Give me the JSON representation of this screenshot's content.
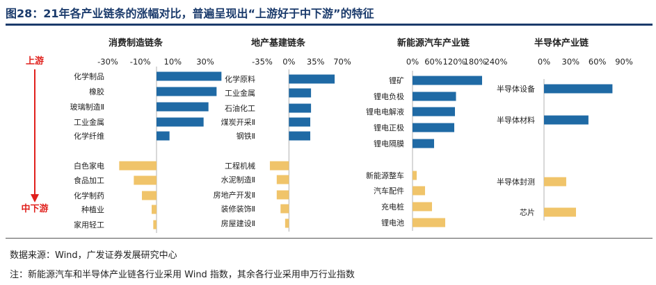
{
  "figure": {
    "title": "图28：21年各产业链条的涨幅对比，普遍呈现出“上游好于中下游”的特征",
    "upstream_label": "上游",
    "downstream_label": "中下游",
    "source": "数据来源：Wind，广发证券发展研究中心",
    "note": "注：新能源汽车和半导体产业链各行业采用 Wind 指数，其余各行业采用申万行业指数"
  },
  "colors": {
    "up": "#1f6aa5",
    "down": "#f0c46a",
    "title": "#1a3a6b",
    "arrow": "#e0201c"
  },
  "chart_data": [
    {
      "type": "bar",
      "title": "消费制造链条",
      "orientation": "horizontal",
      "xlim": [
        -30,
        30
      ],
      "xticks": [
        -30,
        -10,
        10,
        30
      ],
      "xtick_labels": [
        "-30%",
        "-10%",
        "10%",
        "30%"
      ],
      "categories": [
        "化学制品",
        "橡胶",
        "玻璃制造Ⅱ",
        "工业金属",
        "化学纤维",
        "白色家电",
        "食品加工",
        "化学制药",
        "种植业",
        "家用轻工"
      ],
      "values": [
        40,
        37,
        32,
        29,
        8,
        -23,
        -14,
        -9,
        -3,
        -2
      ],
      "group_size": [
        5,
        5
      ]
    },
    {
      "type": "bar",
      "title": "地产基建链条",
      "orientation": "horizontal",
      "xlim": [
        -35,
        70
      ],
      "xticks": [
        -35,
        0,
        35,
        70
      ],
      "xtick_labels": [
        "-35%",
        "0%",
        "35%",
        "70%"
      ],
      "categories": [
        "化学原料",
        "工业金属",
        "石油化工",
        "煤炭开采Ⅱ",
        "钢铁Ⅱ",
        "工程机械",
        "水泥制造Ⅱ",
        "房地产开发Ⅱ",
        "装修装饰Ⅱ",
        "房屋建设Ⅱ"
      ],
      "values": [
        60,
        29,
        29,
        28,
        28,
        -25,
        -16,
        -16,
        -11,
        -5
      ],
      "group_size": [
        5,
        5
      ]
    },
    {
      "type": "bar",
      "title": "新能源汽车产业链",
      "orientation": "horizontal",
      "xlim": [
        0,
        240
      ],
      "xticks": [
        0,
        60,
        120,
        180,
        240
      ],
      "xtick_labels": [
        "0%",
        "60%",
        "120%",
        "180%",
        "240%"
      ],
      "categories": [
        "锂矿",
        "锂电负极",
        "锂电电解液",
        "锂电正极",
        "锂电隔膜",
        "新能源整车",
        "汽车配件",
        "充电桩",
        "锂电池"
      ],
      "values": [
        200,
        125,
        122,
        120,
        62,
        12,
        36,
        56,
        94
      ],
      "group_size": [
        5,
        4
      ]
    },
    {
      "type": "bar",
      "title": "半导体产业链",
      "orientation": "horizontal",
      "xlim": [
        0,
        90
      ],
      "xticks": [
        0,
        30,
        60,
        90
      ],
      "xtick_labels": [
        "0%",
        "30%",
        "60%",
        "90%"
      ],
      "categories": [
        "半导体设备",
        "半导体材料",
        "半导体封测",
        "芯片"
      ],
      "values": [
        77,
        50,
        25,
        36
      ],
      "group_size": [
        2,
        2
      ]
    }
  ]
}
